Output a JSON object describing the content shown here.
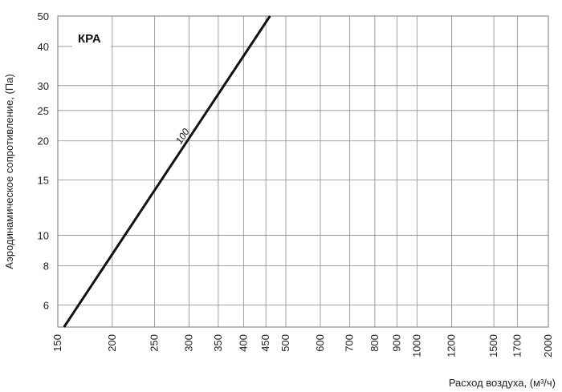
{
  "chart_data": {
    "type": "line",
    "title": "КРА",
    "xlabel": "Расход воздуха, (м³/ч)",
    "ylabel": "Аэродинамическое сопротивление, (Па)",
    "x_scale": "log",
    "y_scale": "log",
    "xlim": [
      150,
      2000
    ],
    "ylim": [
      5.1,
      50
    ],
    "x_ticks": [
      150,
      200,
      250,
      300,
      350,
      400,
      450,
      500,
      600,
      700,
      800,
      900,
      1000,
      1200,
      1500,
      1700,
      2000
    ],
    "y_ticks": [
      6,
      8,
      10,
      15,
      20,
      25,
      30,
      40,
      50
    ],
    "grid": true,
    "legend": "none",
    "series": [
      {
        "name": "100",
        "color": "#111111",
        "points": [
          {
            "x": 155,
            "y": 5.1
          },
          {
            "x": 460,
            "y": 50
          }
        ]
      }
    ]
  }
}
